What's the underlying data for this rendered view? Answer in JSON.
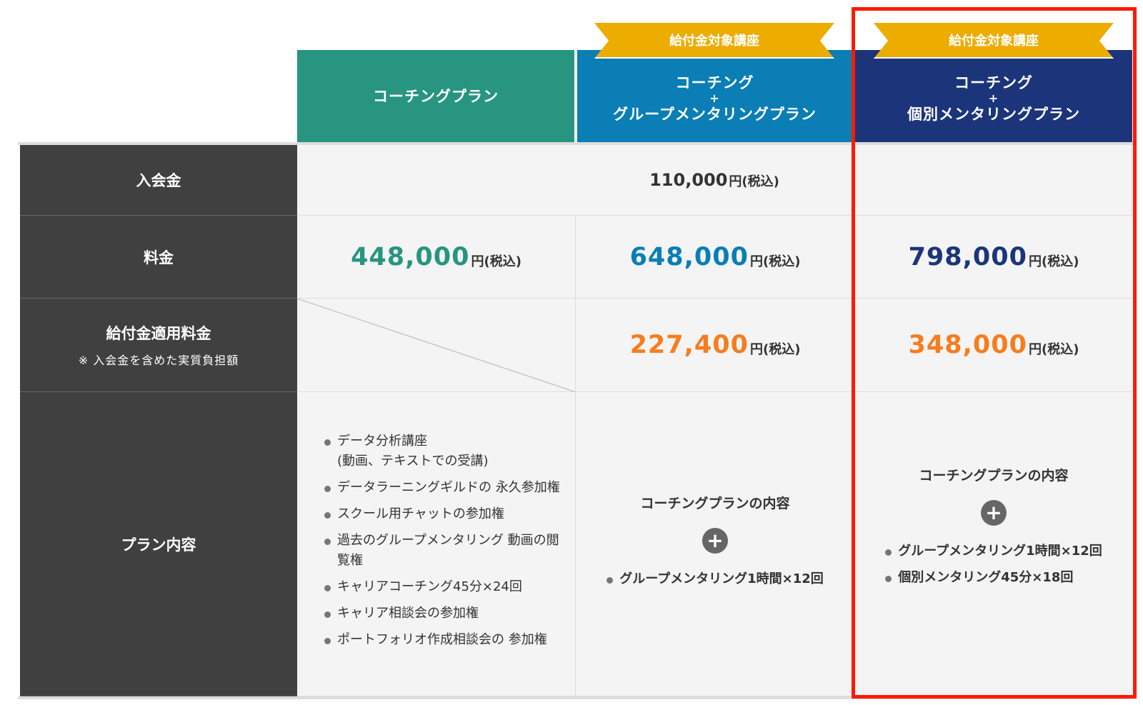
{
  "headers": [
    {
      "title_lines": [
        "コーチングプラン"
      ],
      "color": "#27957f",
      "ribbon": null
    },
    {
      "title_lines": [
        "コーチング",
        "+",
        "グループメンタリングプラン"
      ],
      "color": "#0a7eb5",
      "ribbon": "給付金対象講座"
    },
    {
      "title_lines": [
        "コーチング",
        "+",
        "個別メンタリングプラン"
      ],
      "color": "#1c357a",
      "ribbon": "給付金対象講座"
    }
  ],
  "rows": {
    "enrollment": {
      "label": "入会金",
      "value": "110,000",
      "unit": "円(税込)"
    },
    "fee": {
      "label": "料金",
      "values": [
        "448,000",
        "648,000",
        "798,000"
      ],
      "unit": "円(税込)"
    },
    "subsidy": {
      "label": "給付金適用料金",
      "note": "※ 入会金を含めた実質負担額",
      "values": [
        "227,400",
        "348,000"
      ],
      "unit": "円(税込)",
      "color": "#f57d1f"
    },
    "content": {
      "label": "プラン内容",
      "col1": [
        "データ分析講座\n(動画、テキストでの受講)",
        "データラーニングギルドの 永久参加権",
        "スクール用チャットの参加権",
        "過去のグループメンタリング 動画の閲覧権",
        "キャリアコーチング45分×24回",
        "キャリア相談会の参加権",
        "ポートフォリオ作成相談会の 参加権"
      ],
      "base": "コーチングプランの内容",
      "plus": "+",
      "col2": [
        "グループメンタリング1時間×12回"
      ],
      "col3": [
        "グループメンタリング1時間×12回",
        "個別メンタリング45分×18回"
      ]
    }
  },
  "highlight_color": "#ff1a00"
}
